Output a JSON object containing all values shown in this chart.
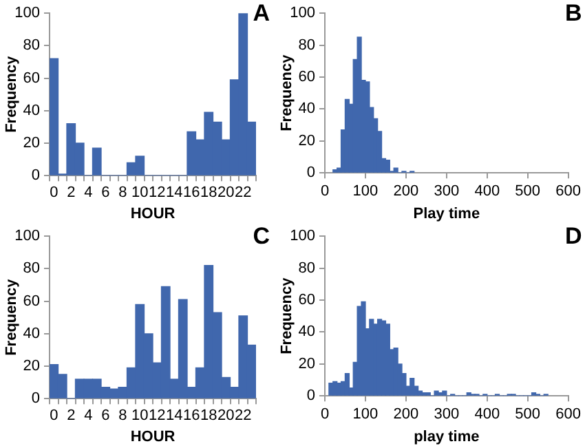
{
  "chart_data": [
    {
      "type": "bar",
      "title": "A",
      "xlabel": "HOUR",
      "ylabel": "Frequency",
      "categories": [
        "0",
        null,
        "2",
        null,
        "4",
        null,
        "6",
        null,
        "8",
        null,
        "10",
        null,
        "12",
        null,
        "14",
        null,
        "16",
        null,
        "18",
        null,
        "20",
        null,
        "22",
        null
      ],
      "values": [
        72,
        1,
        32,
        20,
        0,
        17,
        0,
        0,
        0,
        8,
        12,
        0,
        0,
        0,
        0,
        0,
        27,
        22,
        39,
        33,
        22,
        59,
        100,
        33
      ],
      "color": "#4067ad",
      "ylim": [
        0,
        100
      ],
      "yticks": [
        0,
        20,
        40,
        60,
        80,
        100
      ],
      "grid": false,
      "legend": false
    },
    {
      "type": "histogram",
      "title": "B",
      "xlabel": "Play time",
      "ylabel": "Frequency",
      "bins": [
        20,
        30,
        40,
        50,
        60,
        70,
        80,
        90,
        100,
        110,
        120,
        130,
        140,
        150,
        160,
        170,
        180,
        190,
        200,
        210,
        220
      ],
      "values": [
        2,
        3,
        27,
        46,
        43,
        71,
        85,
        58,
        57,
        41,
        34,
        26,
        9,
        8,
        1,
        3,
        0,
        1,
        0,
        1
      ],
      "color": "#4067ad",
      "xlim": [
        0,
        600
      ],
      "xticks": [
        0,
        100,
        200,
        300,
        400,
        500,
        600
      ],
      "ylim": [
        0,
        100
      ],
      "yticks": [
        0,
        20,
        40,
        60,
        80,
        100
      ],
      "grid": false,
      "legend": false
    },
    {
      "type": "bar",
      "title": "C",
      "xlabel": "HOUR",
      "ylabel": "Frequency",
      "categories": [
        "0",
        null,
        "2",
        null,
        "4",
        null,
        "6",
        null,
        "8",
        null,
        "10",
        null,
        "12",
        null,
        "14",
        null,
        "16",
        null,
        "18",
        null,
        "20",
        null,
        "22",
        null
      ],
      "values": [
        21,
        15,
        0,
        12,
        12,
        12,
        7,
        6,
        7,
        19,
        58,
        40,
        22,
        69,
        12,
        61,
        7,
        19,
        82,
        53,
        13,
        7,
        51,
        33
      ],
      "color": "#4067ad",
      "ylim": [
        0,
        100
      ],
      "yticks": [
        0,
        20,
        40,
        60,
        80,
        100
      ],
      "grid": false,
      "legend": false
    },
    {
      "type": "histogram",
      "title": "D",
      "xlabel": "play time",
      "ylabel": "Frequency",
      "bins": [
        10,
        20,
        30,
        40,
        50,
        60,
        70,
        80,
        90,
        100,
        110,
        120,
        130,
        140,
        150,
        160,
        170,
        180,
        190,
        200,
        210,
        220,
        230,
        240,
        250,
        260,
        270,
        280,
        290,
        300,
        310,
        320,
        330,
        340,
        350,
        360,
        370,
        380,
        390,
        400,
        410,
        420,
        430,
        440,
        450,
        460,
        470,
        480,
        490,
        500,
        510,
        520,
        530,
        540,
        550
      ],
      "values": [
        8,
        9,
        8,
        9,
        14,
        5,
        21,
        56,
        59,
        42,
        48,
        45,
        48,
        47,
        45,
        29,
        30,
        20,
        14,
        6,
        11,
        6,
        3,
        2,
        2,
        0,
        3,
        2,
        3,
        0,
        1,
        0,
        0,
        0,
        2,
        1,
        1,
        0,
        1,
        0,
        0,
        1,
        0,
        0,
        1,
        1,
        0,
        0,
        0,
        0,
        2,
        1,
        0,
        1
      ],
      "color": "#4067ad",
      "xlim": [
        0,
        600
      ],
      "xticks": [
        0,
        100,
        200,
        300,
        400,
        500,
        600
      ],
      "ylim": [
        0,
        100
      ],
      "yticks": [
        0,
        20,
        40,
        60,
        80,
        100
      ],
      "grid": false,
      "legend": false
    }
  ]
}
